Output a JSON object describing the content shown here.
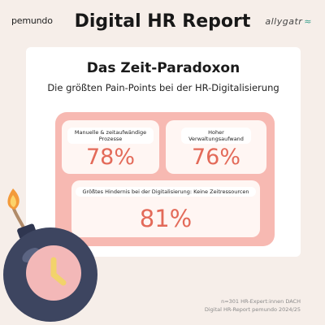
{
  "header": {
    "logo_left": "pemundo",
    "title": "Digital HR Report",
    "logo_right": "allygatr"
  },
  "card": {
    "title": "Das Zeit-Paradoxon",
    "subtitle": "Die größten Pain-Points bei der HR-Digitalisierung",
    "stats": [
      {
        "label": "Manuelle & zeitaufwändige Prozesse",
        "value": "78%"
      },
      {
        "label": "Hoher Verwaltungsaufwand",
        "value": "76%"
      },
      {
        "label": "Größtes Hindernis bei der Digitalisierung: Keine Zeitressourcen",
        "value": "81%"
      }
    ]
  },
  "footer": {
    "line1": "n=301 HR-Expert:innen DACH",
    "line2": "Digital HR-Report pemundo 2024/25"
  },
  "colors": {
    "background": "#f6eee9",
    "panel": "#f7b9b2",
    "accent": "#e36a59",
    "bomb": "#3d4560",
    "clock_face": "#f3b8b8",
    "clock_hands": "#f2d36b"
  },
  "icons": [
    "bomb-icon",
    "clock-icon",
    "flame-icon"
  ]
}
